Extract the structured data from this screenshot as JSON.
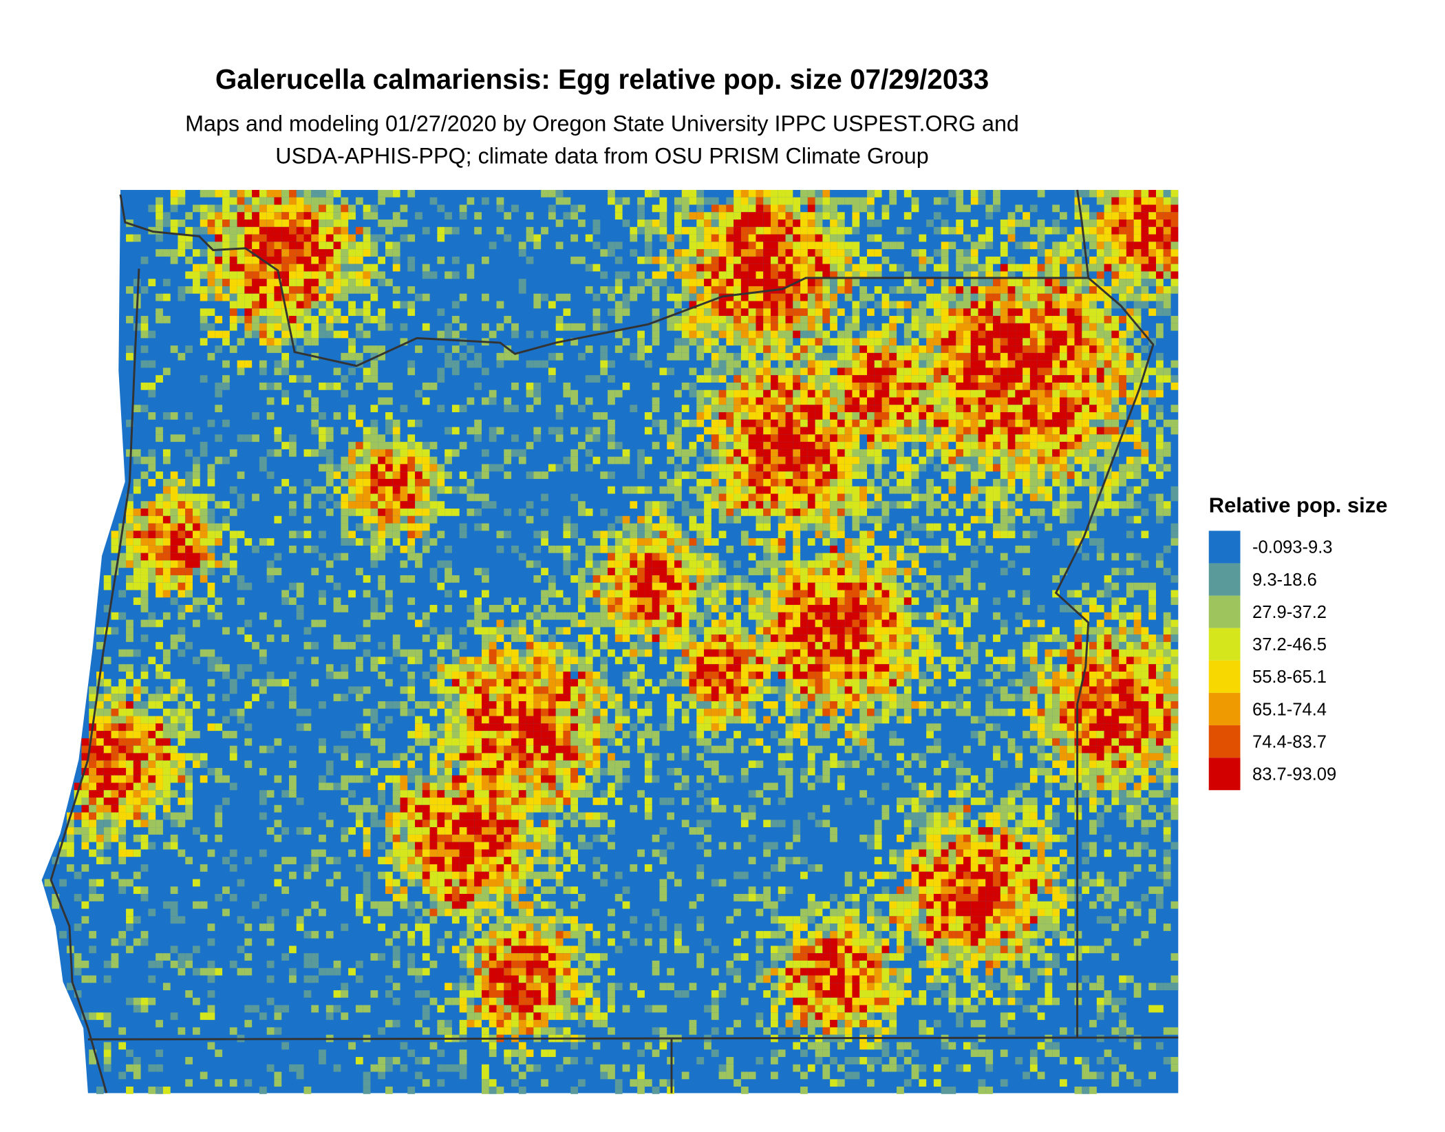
{
  "title": "Galerucella calmariensis: Egg relative pop. size 07/29/2033",
  "subtitle_lines": [
    "Maps and modeling 01/27/2020 by Oregon State University IPPC USPEST.ORG and",
    "USDA-APHIS-PPQ; climate data from OSU PRISM Climate Group"
  ],
  "legend": {
    "title": "Relative pop. size",
    "items": [
      {
        "label": "-0.093-9.3",
        "color": "#1a73c9"
      },
      {
        "label": "9.3-18.6",
        "color": "#5b9a9a"
      },
      {
        "label": "27.9-37.2",
        "color": "#9ec45e"
      },
      {
        "label": "37.2-46.5",
        "color": "#d6e61c"
      },
      {
        "label": "55.8-65.1",
        "color": "#f7d800"
      },
      {
        "label": "65.1-74.4",
        "color": "#ee9a00"
      },
      {
        "label": "74.4-83.7",
        "color": "#e05000"
      },
      {
        "label": "83.7-93.09",
        "color": "#d30000"
      }
    ]
  }
}
